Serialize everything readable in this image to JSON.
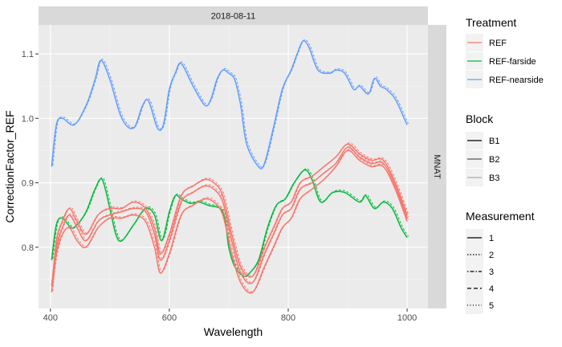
{
  "chart_data": {
    "type": "line",
    "facet_top": "2018-08-11",
    "facet_right": "MNAT",
    "xlabel": "Wavelength",
    "ylabel": "CorrectionFactor_REF",
    "xlim": [
      380,
      1035
    ],
    "ylim": [
      0.705,
      1.145
    ],
    "x_ticks": [
      400,
      600,
      800,
      1000
    ],
    "x_tick_labels": [
      "400",
      "600",
      "800",
      "1000"
    ],
    "y_ticks": [
      0.8,
      0.9,
      1.0,
      1.1
    ],
    "y_tick_labels": [
      "0.8",
      "0.9",
      "1.0",
      "1.1"
    ],
    "grid": true,
    "legends": [
      {
        "title": "Treatment",
        "entries": [
          {
            "label": "REF",
            "color": "#F8766D"
          },
          {
            "label": "REF-farside",
            "color": "#00BA38"
          },
          {
            "label": "REF-nearside",
            "color": "#619CFF"
          }
        ]
      },
      {
        "title": "Block",
        "entries": [
          {
            "label": "B1",
            "color": "#000000"
          },
          {
            "label": "B2",
            "color": "#555555"
          },
          {
            "label": "B3",
            "color": "#aaaaaa"
          }
        ]
      },
      {
        "title": "Measurement",
        "entries": [
          {
            "label": "1",
            "dash": "solid"
          },
          {
            "label": "2",
            "dash": "dotted"
          },
          {
            "label": "3",
            "dash": "dotdash"
          },
          {
            "label": "4",
            "dash": "dashed"
          },
          {
            "label": "5",
            "dash": "longdash"
          }
        ]
      }
    ],
    "series": [
      {
        "treatment": "REF-nearside",
        "block": "B1",
        "color": "#619CFF",
        "x": [
          402,
          410,
          420,
          440,
          460,
          475,
          485,
          500,
          520,
          540,
          555,
          565,
          580,
          590,
          600,
          610,
          620,
          640,
          660,
          670,
          680,
          690,
          700,
          710,
          720,
          730,
          750,
          760,
          775,
          790,
          805,
          815,
          825,
          835,
          850,
          870,
          880,
          895,
          910,
          920,
          935,
          945,
          955,
          965,
          980,
          995,
          1000
        ],
        "y": [
          0.925,
          0.99,
          1.0,
          0.99,
          1.02,
          1.06,
          1.09,
          1.06,
          1.0,
          0.985,
          1.02,
          1.027,
          0.985,
          0.99,
          1.045,
          1.07,
          1.085,
          1.05,
          1.02,
          1.03,
          1.06,
          1.075,
          1.07,
          1.06,
          1.02,
          0.96,
          0.925,
          0.93,
          0.985,
          1.045,
          1.075,
          1.1,
          1.12,
          1.11,
          1.075,
          1.07,
          1.075,
          1.07,
          1.045,
          1.05,
          1.038,
          1.062,
          1.05,
          1.045,
          1.03,
          1.0,
          0.99
        ]
      },
      {
        "treatment": "REF-farside",
        "block": "B1",
        "color": "#00BA38",
        "x": [
          402,
          410,
          420,
          435,
          445,
          460,
          475,
          487,
          500,
          510,
          520,
          540,
          560,
          575,
          587,
          600,
          610,
          620,
          635,
          650,
          665,
          690,
          700,
          710,
          725,
          735,
          750,
          765,
          780,
          795,
          810,
          828,
          840,
          855,
          875,
          895,
          920,
          930,
          945,
          960,
          975,
          990,
          1000
        ],
        "y": [
          0.78,
          0.835,
          0.845,
          0.83,
          0.835,
          0.855,
          0.89,
          0.905,
          0.86,
          0.82,
          0.81,
          0.835,
          0.86,
          0.85,
          0.81,
          0.855,
          0.88,
          0.875,
          0.868,
          0.87,
          0.865,
          0.855,
          0.8,
          0.77,
          0.755,
          0.76,
          0.78,
          0.83,
          0.865,
          0.875,
          0.9,
          0.92,
          0.905,
          0.87,
          0.885,
          0.885,
          0.87,
          0.88,
          0.86,
          0.87,
          0.86,
          0.83,
          0.815
        ]
      },
      {
        "treatment": "REF",
        "block": "B1",
        "color": "#F8766D",
        "x": [
          402,
          410,
          420,
          432,
          445,
          460,
          480,
          500,
          520,
          540,
          560,
          575,
          585,
          600,
          620,
          640,
          660,
          675,
          690,
          705,
          720,
          740,
          760,
          775,
          790,
          805,
          820,
          840,
          860,
          880,
          900,
          920,
          940,
          960,
          980,
          1000
        ],
        "y": [
          0.73,
          0.81,
          0.84,
          0.86,
          0.84,
          0.82,
          0.85,
          0.86,
          0.86,
          0.87,
          0.86,
          0.83,
          0.79,
          0.82,
          0.88,
          0.895,
          0.905,
          0.9,
          0.88,
          0.82,
          0.77,
          0.755,
          0.8,
          0.83,
          0.86,
          0.87,
          0.9,
          0.91,
          0.925,
          0.94,
          0.96,
          0.945,
          0.935,
          0.935,
          0.9,
          0.85
        ]
      },
      {
        "treatment": "REF",
        "block": "B2",
        "color": "#F8766D",
        "x": [
          402,
          410,
          420,
          432,
          445,
          460,
          480,
          500,
          520,
          540,
          560,
          575,
          585,
          600,
          620,
          640,
          660,
          675,
          690,
          705,
          720,
          740,
          760,
          775,
          790,
          805,
          820,
          840,
          860,
          880,
          900,
          920,
          940,
          960,
          980,
          1000
        ],
        "y": [
          0.74,
          0.8,
          0.83,
          0.85,
          0.83,
          0.81,
          0.84,
          0.85,
          0.855,
          0.86,
          0.855,
          0.82,
          0.78,
          0.81,
          0.87,
          0.885,
          0.895,
          0.89,
          0.87,
          0.81,
          0.76,
          0.745,
          0.79,
          0.82,
          0.85,
          0.86,
          0.89,
          0.9,
          0.915,
          0.93,
          0.955,
          0.94,
          0.93,
          0.93,
          0.895,
          0.845
        ]
      },
      {
        "treatment": "REF",
        "block": "B3",
        "color": "#F8766D",
        "x": [
          402,
          410,
          420,
          432,
          445,
          460,
          480,
          500,
          520,
          540,
          560,
          575,
          585,
          600,
          620,
          640,
          660,
          675,
          690,
          705,
          720,
          740,
          760,
          775,
          790,
          805,
          820,
          840,
          860,
          880,
          900,
          920,
          940,
          960,
          980,
          1000
        ],
        "y": [
          0.74,
          0.79,
          0.82,
          0.83,
          0.81,
          0.8,
          0.83,
          0.845,
          0.845,
          0.85,
          0.84,
          0.8,
          0.76,
          0.79,
          0.85,
          0.865,
          0.875,
          0.87,
          0.85,
          0.79,
          0.745,
          0.73,
          0.77,
          0.8,
          0.83,
          0.845,
          0.875,
          0.89,
          0.905,
          0.925,
          0.95,
          0.935,
          0.925,
          0.925,
          0.89,
          0.84
        ]
      }
    ]
  }
}
